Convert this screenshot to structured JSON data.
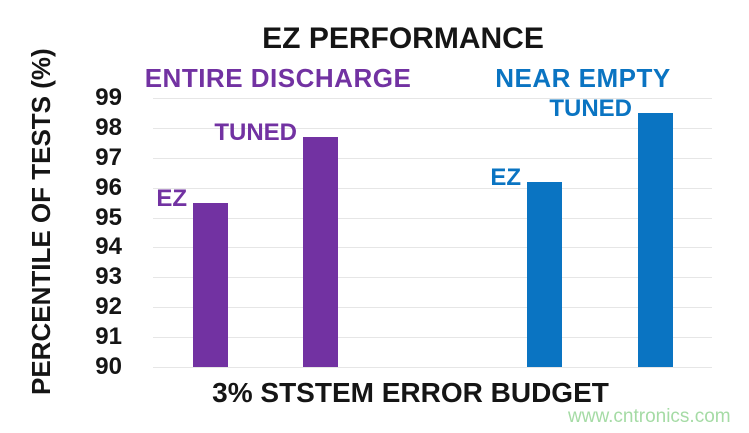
{
  "title": "EZ PERFORMANCE",
  "y_axis": {
    "label": "PERCENTILE OF TESTS (%)"
  },
  "x_axis": {
    "label": "3% STSTEM ERROR BUDGET"
  },
  "watermark": "www.cntronics.com",
  "colors": {
    "purple": "#7232A2",
    "blue": "#0A74C2",
    "grid": "#E6E6E6",
    "text": "#151515",
    "watermark_green": "#A5DBA5",
    "background": "#FFFFFF"
  },
  "chart_data": {
    "type": "bar",
    "title": "EZ PERFORMANCE",
    "xlabel": "3% STSTEM ERROR BUDGET",
    "ylabel": "PERCENTILE OF TESTS (%)",
    "ylim": [
      90,
      99
    ],
    "yticks": [
      99,
      98,
      97,
      96,
      95,
      94,
      93,
      92,
      91,
      90
    ],
    "grid": true,
    "legend": "none",
    "groups": [
      {
        "label": "ENTIRE DISCHARGE",
        "color": "#7232A2",
        "bars": [
          {
            "label": "EZ",
            "value": 95.5
          },
          {
            "label": "TUNED",
            "value": 97.7
          }
        ]
      },
      {
        "label": "NEAR EMPTY",
        "color": "#0A74C2",
        "bars": [
          {
            "label": "EZ",
            "value": 96.2
          },
          {
            "label": "TUNED",
            "value": 98.5
          }
        ]
      }
    ]
  }
}
